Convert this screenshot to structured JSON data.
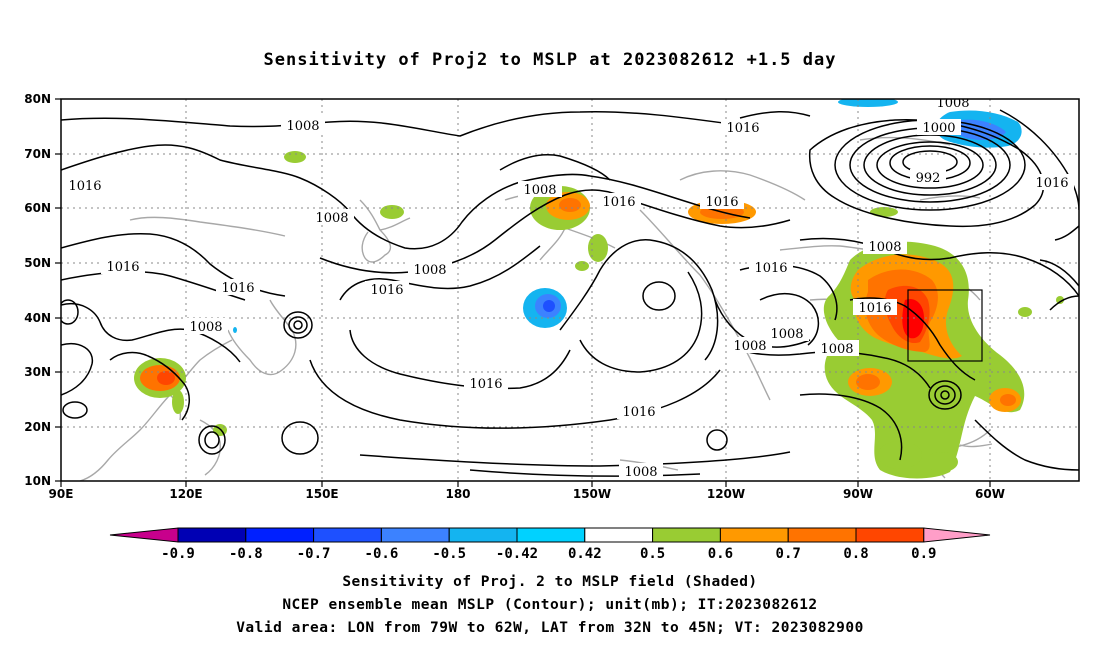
{
  "title": "Sensitivity of Proj2 to MSLP at 2023082612 +1.5 day",
  "map": {
    "lon_labels": [
      "90E",
      "120E",
      "150E",
      "180",
      "150W",
      "120W",
      "90W",
      "60W"
    ],
    "lat_labels": [
      "80N",
      "70N",
      "60N",
      "50N",
      "40N",
      "30N",
      "20N",
      "10N"
    ],
    "contour_labels": [
      "1008",
      "1016",
      "1008",
      "1016",
      "1008",
      "1016",
      "1016",
      "1008",
      "1016",
      "1008",
      "1016",
      "1016",
      "1008",
      "1016",
      "1016",
      "1008",
      "1008",
      "1016",
      "1008",
      "1000",
      "992",
      "1016",
      "1016",
      "1008",
      "1008"
    ],
    "valid_area": {
      "lon": [
        "79W",
        "62W"
      ],
      "lat": [
        "32N",
        "45N"
      ]
    }
  },
  "colorbar": {
    "labels": [
      "-0.9",
      "-0.8",
      "-0.7",
      "-0.6",
      "-0.5",
      "-0.42",
      "0.42",
      "0.5",
      "0.6",
      "0.7",
      "0.8",
      "0.9"
    ],
    "colors": [
      "#c8008c",
      "#0000b4",
      "#0020ff",
      "#1e50ff",
      "#3c82ff",
      "#14b4f0",
      "#00d2ff",
      "#ffffff",
      "#99cc33",
      "#ff9900",
      "#ff7300",
      "#ff4600",
      "#ff0000",
      "#ff9ec8"
    ]
  },
  "captions": {
    "line1": "Sensitivity of Proj. 2 to MSLP field (Shaded)",
    "line2": "NCEP ensemble mean MSLP (Contour); unit(mb); IT:2023082612",
    "line3": "Valid area: LON from 79W to 62W, LAT from 32N to 45N; VT: 2023082900"
  }
}
